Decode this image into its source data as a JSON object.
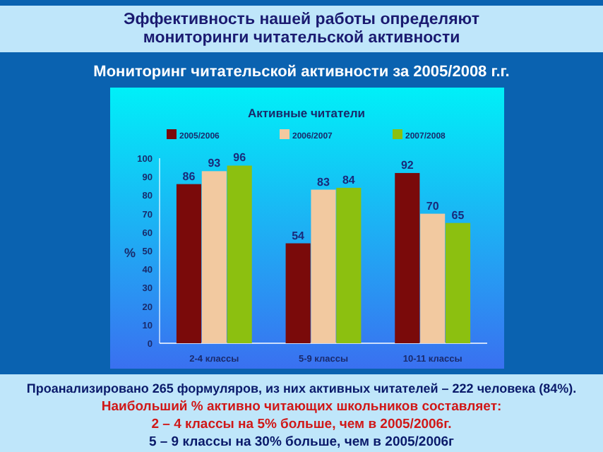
{
  "chart_data": {
    "type": "bar",
    "title": "Активные читатели",
    "subtitle": "Мониторинг читательской активности за 2005/2008 г.г.",
    "ylabel": "%",
    "categories": [
      "2-4 классы",
      "5-9 классы",
      "10-11 классы"
    ],
    "series": [
      {
        "name": "2005/2006",
        "color": "#7a0a0a",
        "values": [
          86,
          54,
          92
        ]
      },
      {
        "name": "2006/2007",
        "color": "#f2c9a0",
        "values": [
          93,
          83,
          70
        ]
      },
      {
        "name": "2007/2008",
        "color": "#8cc010",
        "values": [
          96,
          84,
          65
        ]
      }
    ],
    "ylim": [
      0,
      100
    ],
    "yticks": [
      0,
      10,
      20,
      30,
      40,
      50,
      60,
      70,
      80,
      90,
      100
    ],
    "data_labels": true,
    "legend": "top",
    "grid": false,
    "annotations": [
      "Эффективность нашей работы определяют\nмониторинги читательской активности",
      "Проанализировано 265 формуляров, из них активных читателей – 222 человека (84%).",
      "Наибольший % активно читающих школьников составляет:",
      "2 – 4 классы на 5% больше, чем в 2005/2006г.",
      "5 – 9 классы на 30% больше, чем в 2005/2006г"
    ]
  }
}
